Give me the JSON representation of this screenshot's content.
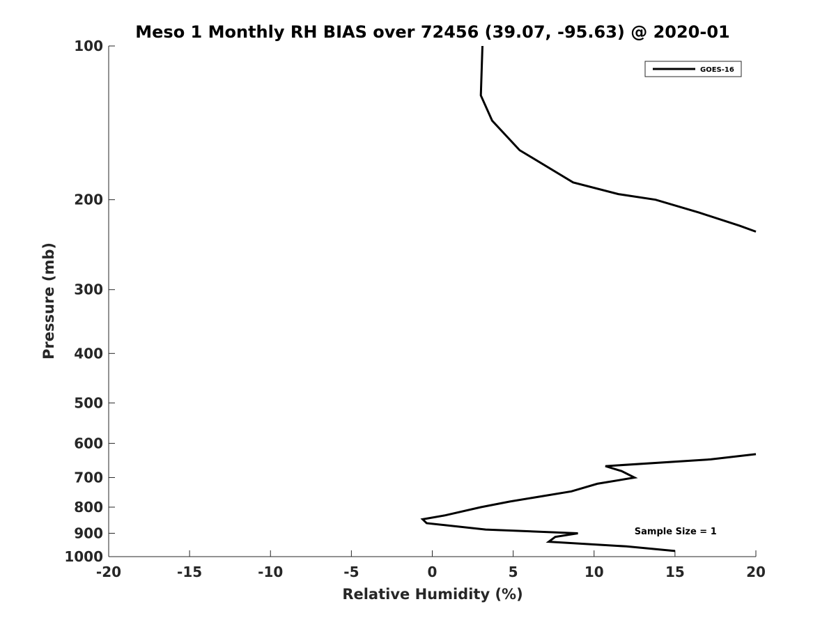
{
  "chart_data": {
    "type": "line",
    "title": "Meso 1 Monthly RH BIAS over 72456 (39.07, -95.63) @ 2020-01",
    "xlabel": "Relative Humidity (%)",
    "ylabel": "Pressure (mb)",
    "xlim": [
      -20,
      20
    ],
    "ylim": [
      100,
      1000
    ],
    "y_scale": "log",
    "y_reversed": true,
    "xticks": [
      "-20",
      "-15",
      "-10",
      "-5",
      "0",
      "5",
      "10",
      "15",
      "20"
    ],
    "yticks": [
      "100",
      "200",
      "300",
      "400",
      "500",
      "600",
      "700",
      "800",
      "900",
      "1000"
    ],
    "grid": false,
    "legend": {
      "placement": "top-right",
      "entries": [
        "GOES-16"
      ]
    },
    "annotations": [
      {
        "text": "Sample Size = 1",
        "x": 12.5,
        "y": 905
      }
    ],
    "series": [
      {
        "name": "GOES-16",
        "color": "#000000",
        "segments": [
          [
            {
              "x": 3.1,
              "y": 100
            },
            {
              "x": 3.0,
              "y": 125
            },
            {
              "x": 3.7,
              "y": 140
            },
            {
              "x": 5.4,
              "y": 160
            },
            {
              "x": 8.7,
              "y": 185
            },
            {
              "x": 11.5,
              "y": 195
            },
            {
              "x": 13.8,
              "y": 200
            },
            {
              "x": 16.5,
              "y": 212
            },
            {
              "x": 19.0,
              "y": 225
            },
            {
              "x": 20.0,
              "y": 231
            }
          ],
          [
            {
              "x": 20.0,
              "y": 630
            },
            {
              "x": 17.2,
              "y": 645
            },
            {
              "x": 10.7,
              "y": 665
            },
            {
              "x": 11.7,
              "y": 680
            },
            {
              "x": 12.5,
              "y": 700
            },
            {
              "x": 10.2,
              "y": 720
            },
            {
              "x": 8.6,
              "y": 745
            },
            {
              "x": 4.8,
              "y": 780
            },
            {
              "x": 3.0,
              "y": 800
            },
            {
              "x": 0.8,
              "y": 830
            },
            {
              "x": -0.6,
              "y": 845
            },
            {
              "x": -0.35,
              "y": 860
            },
            {
              "x": 3.3,
              "y": 885
            },
            {
              "x": 9.0,
              "y": 900
            },
            {
              "x": 7.6,
              "y": 915
            },
            {
              "x": 7.2,
              "y": 935
            },
            {
              "x": 12.0,
              "y": 955
            },
            {
              "x": 15.0,
              "y": 975
            }
          ]
        ]
      }
    ]
  }
}
